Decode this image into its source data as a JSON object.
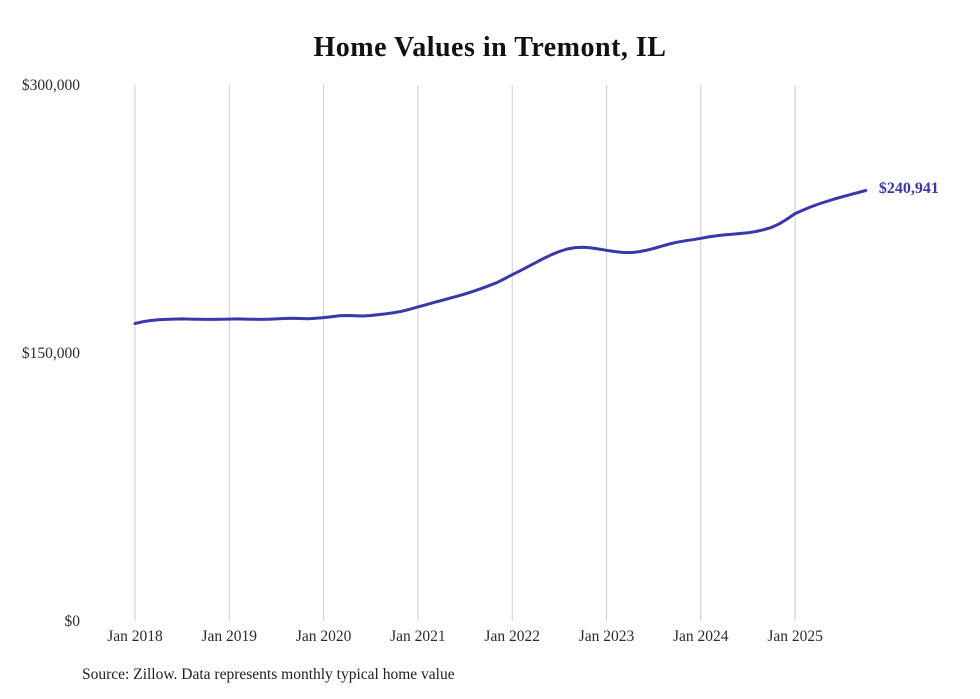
{
  "chart_data": {
    "type": "line",
    "title": "Home Values in Tremont, IL",
    "source": "Source: Zillow. Data represents monthly typical home value",
    "series_name": "Monthly typical home value",
    "end_label": "$240,941",
    "latest_value": 240941,
    "ylim": [
      0,
      300000
    ],
    "y_ticks": [
      {
        "label": "$300,000",
        "value": 300000
      },
      {
        "label": "$150,000",
        "value": 150000
      },
      {
        "label": "$0",
        "value": 0
      }
    ],
    "x_ticks": [
      "Jan 2018",
      "Jan 2019",
      "Jan 2020",
      "Jan 2021",
      "Jan 2022",
      "Jan 2023",
      "Jan 2024",
      "Jan 2025"
    ],
    "grid": "vertical-only",
    "legend": "none",
    "line_color": "#3838ab",
    "grid_color": "#cccccc",
    "tick_color": "#2b2b2b",
    "x": [
      "2018-01",
      "2018-02",
      "2018-03",
      "2018-04",
      "2018-05",
      "2018-06",
      "2018-07",
      "2018-08",
      "2018-09",
      "2018-10",
      "2018-11",
      "2018-12",
      "2019-01",
      "2019-02",
      "2019-03",
      "2019-04",
      "2019-05",
      "2019-06",
      "2019-07",
      "2019-08",
      "2019-09",
      "2019-10",
      "2019-11",
      "2019-12",
      "2020-01",
      "2020-02",
      "2020-03",
      "2020-04",
      "2020-05",
      "2020-06",
      "2020-07",
      "2020-08",
      "2020-09",
      "2020-10",
      "2020-11",
      "2020-12",
      "2021-01",
      "2021-02",
      "2021-03",
      "2021-04",
      "2021-05",
      "2021-06",
      "2021-07",
      "2021-08",
      "2021-09",
      "2021-10",
      "2021-11",
      "2021-12",
      "2022-01",
      "2022-02",
      "2022-03",
      "2022-04",
      "2022-05",
      "2022-06",
      "2022-07",
      "2022-08",
      "2022-09",
      "2022-10",
      "2022-11",
      "2022-12",
      "2023-01",
      "2023-02",
      "2023-03",
      "2023-04",
      "2023-05",
      "2023-06",
      "2023-07",
      "2023-08",
      "2023-09",
      "2023-10",
      "2023-11",
      "2023-12",
      "2024-01",
      "2024-02",
      "2024-03",
      "2024-04",
      "2024-05",
      "2024-06",
      "2024-07",
      "2024-08",
      "2024-09",
      "2024-10",
      "2024-11",
      "2024-12",
      "2025-01",
      "2025-02",
      "2025-03",
      "2025-04",
      "2025-05",
      "2025-06",
      "2025-07",
      "2025-08",
      "2025-09",
      "2025-10"
    ],
    "values": [
      166500,
      167500,
      168200,
      168600,
      168800,
      169000,
      169100,
      169000,
      168900,
      168800,
      168800,
      168900,
      169000,
      169100,
      169000,
      168900,
      168800,
      168900,
      169100,
      169300,
      169400,
      169300,
      169200,
      169400,
      169800,
      170300,
      170800,
      171000,
      170800,
      170700,
      171000,
      171500,
      172000,
      172600,
      173400,
      174500,
      175800,
      177000,
      178200,
      179400,
      180600,
      181800,
      183100,
      184500,
      186000,
      187600,
      189300,
      191500,
      193800,
      196000,
      198300,
      200600,
      202900,
      205000,
      206800,
      208200,
      209000,
      209200,
      208800,
      208200,
      207500,
      206800,
      206300,
      206200,
      206600,
      207400,
      208500,
      209800,
      211000,
      212000,
      212800,
      213400,
      214200,
      215000,
      215600,
      216100,
      216500,
      216900,
      217300,
      218000,
      219000,
      220300,
      222300,
      225000,
      228000,
      230000,
      231800,
      233400,
      234800,
      236200,
      237400,
      238600,
      239800,
      240941
    ]
  }
}
